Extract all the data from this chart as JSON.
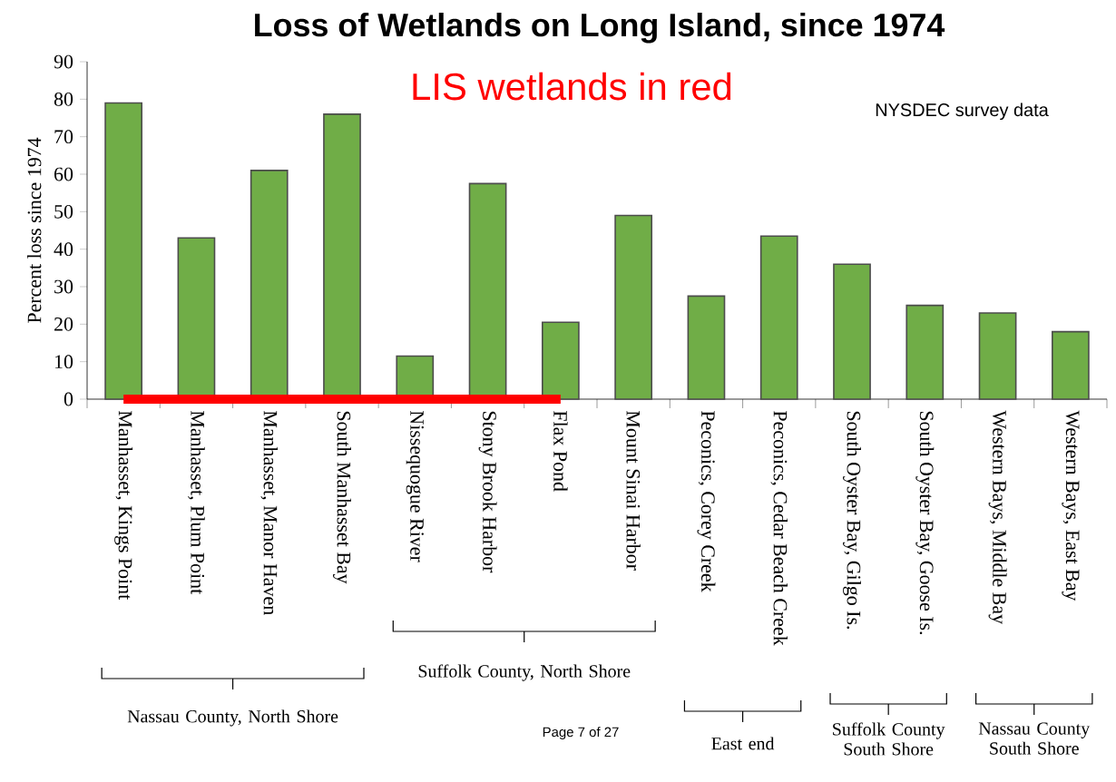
{
  "chart_data": {
    "type": "bar",
    "title": "Loss of Wetlands on Long Island, since 1974",
    "ylabel": "Percent loss since 1974",
    "categories": [
      "Manhasset, Kings Point",
      "Manhasset, Plum Point",
      "Manhasset, Manor Haven",
      "South Manhasset Bay",
      "Nissequogue River",
      "Stony Brook Harbor",
      "Flax Pond",
      "Mount Sinai Harbor",
      "Peconics, Corey Creek",
      "Peconics, Cedar Beach Creek",
      "South Oyster Bay, Gilgo Is.",
      "South Oyster Bay, Goose Is.",
      "Western Bays, Middle Bay",
      "Western Bays, East Bay"
    ],
    "series": [
      {
        "color": "#70ad47",
        "values": [
          79,
          43,
          61,
          76,
          11.5,
          57.5,
          20.5,
          49,
          27.5,
          43.5,
          36,
          25,
          23,
          18
        ]
      },
      {
        "type": "line",
        "color": "#ff0000",
        "values": [
          0,
          0,
          0,
          0,
          0,
          0,
          0,
          null,
          null,
          null,
          null,
          null,
          null,
          null
        ]
      }
    ],
    "ylim": [
      0,
      90
    ],
    "yticks": [
      0,
      10,
      20,
      30,
      40,
      50,
      60,
      70,
      80,
      90
    ],
    "annotations": [
      "LIS wetlands in red",
      "NYSDEC survey data",
      "Nassau County, North Shore",
      "Suffolk County, North Shore",
      "East end",
      "Suffolk County South Shore",
      "Nassau County South Shore",
      "Page 7 of 27"
    ]
  }
}
